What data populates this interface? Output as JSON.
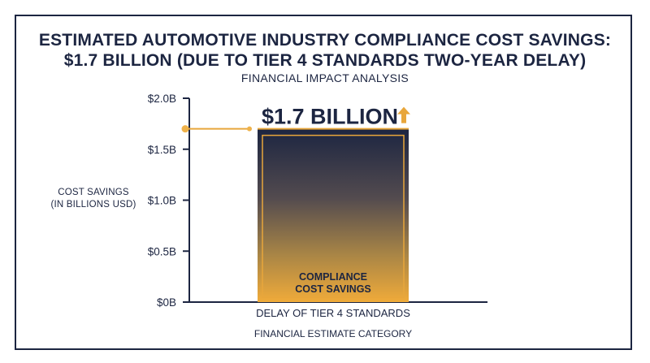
{
  "chart_data": {
    "type": "bar",
    "title": [
      "ESTIMATED AUTOMOTIVE INDUSTRY COMPLIANCE COST SAVINGS:",
      "$1.7 BILLION (DUE TO TIER 4 STANDARDS TWO-YEAR DELAY)"
    ],
    "subtitle": "FINANCIAL IMPACT ANALYSIS",
    "ylabel": [
      "COST SAVINGS",
      "(IN BILLIONS USD)"
    ],
    "xlabel": "FINANCIAL ESTIMATE CATEGORY",
    "categories": [
      "DELAY OF TIER 4 STANDARDS"
    ],
    "values": [
      1.7
    ],
    "ylim": [
      0,
      2.0
    ],
    "yticks": [
      0,
      0.5,
      1.0,
      1.5,
      2.0
    ],
    "ytick_labels": [
      "$0B",
      "$0.5B",
      "$1.0B",
      "$1.5B",
      "$2.0B"
    ],
    "value_label": "$1.7 BILLION",
    "bar_label": [
      "COMPLIANCE",
      "COST SAVINGS"
    ],
    "grid": false,
    "colors": {
      "navy": "#1c2541",
      "gold": "#e8a63b",
      "gold_dot": "#efb24a"
    }
  }
}
